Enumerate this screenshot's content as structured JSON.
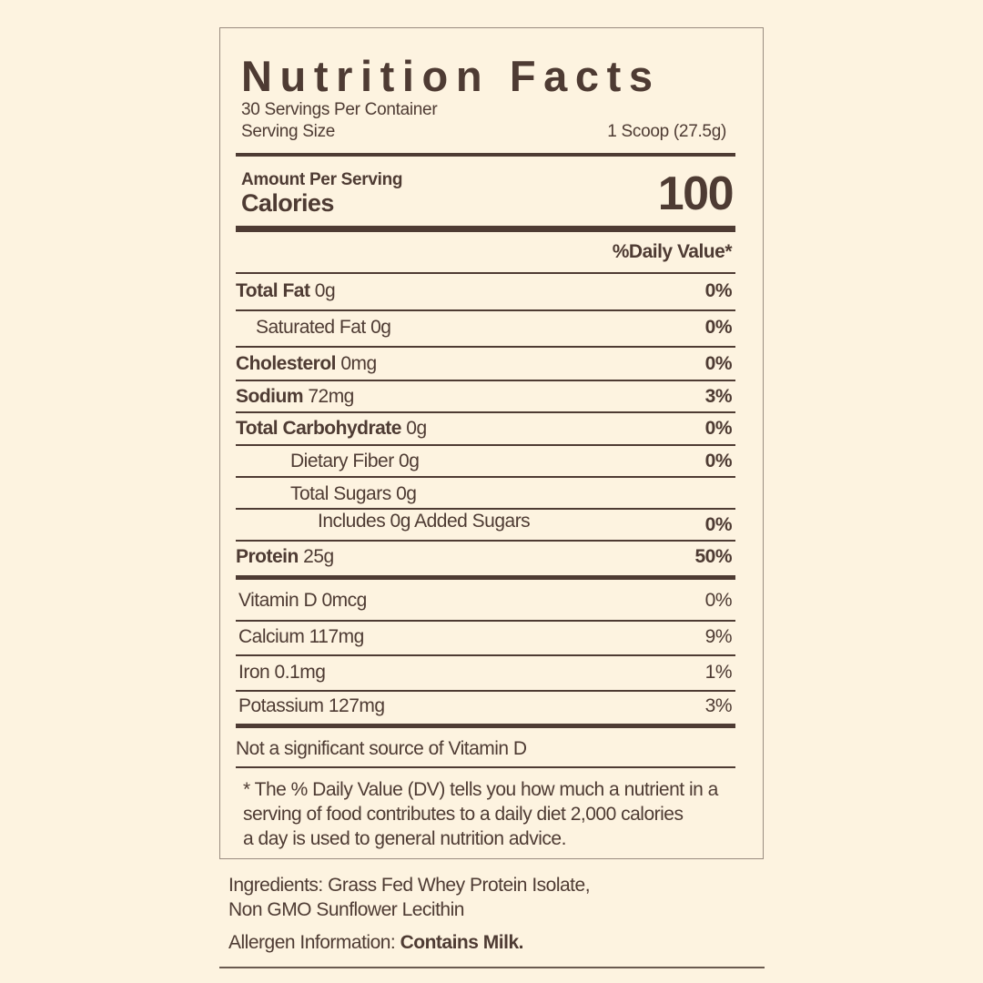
{
  "label": {
    "title": "Nutrition Facts",
    "servings_per_container": "30 Servings Per Container",
    "serving_size_label": "Serving Size",
    "serving_size_value": "1 Scoop (27.5g)",
    "amount_per_serving": "Amount Per Serving",
    "calories_label": "Calories",
    "calories_value": "100",
    "daily_value_header": "%Daily Value*",
    "nutrients": [
      {
        "name": "Total Fat",
        "amount": " 0g",
        "dv": "0%",
        "bold": true,
        "indent": 0
      },
      {
        "name": "Saturated Fat 0g",
        "amount": "",
        "dv": "0%",
        "bold": false,
        "indent": 1
      },
      {
        "name": "Cholesterol",
        "amount": " 0mg",
        "dv": "0%",
        "bold": true,
        "indent": 0
      },
      {
        "name": "Sodium",
        "amount": " 72mg",
        "dv": "3%",
        "bold": true,
        "indent": 0
      },
      {
        "name": "Total Carbohydrate",
        "amount": " 0g",
        "dv": "0%",
        "bold": true,
        "indent": 0
      },
      {
        "name": "Dietary Fiber 0g",
        "amount": "",
        "dv": "0%",
        "bold": false,
        "indent": 2
      },
      {
        "name": "Total Sugars 0g",
        "amount": "",
        "dv": "",
        "bold": false,
        "indent": 2
      },
      {
        "name": "Includes 0g Added Sugars",
        "amount": "",
        "dv": "0%",
        "bold": false,
        "indent": 3
      },
      {
        "name": "Protein",
        "amount": " 25g",
        "dv": "50%",
        "bold": true,
        "indent": 0
      }
    ],
    "vitamins": [
      {
        "name": "Vitamin D 0mcg",
        "dv": "0%"
      },
      {
        "name": "Calcium 117mg",
        "dv": "9%"
      },
      {
        "name": "Iron 0.1mg",
        "dv": "1%"
      },
      {
        "name": "Potassium 127mg",
        "dv": "3%"
      }
    ],
    "not_significant": "Not a significant source of Vitamin D",
    "footnote": [
      "* The % Daily Value (DV) tells you how much a nutrient in a",
      "serving of food contributes to a daily diet 2,000 calories",
      "a day is used to general nutrition advice."
    ]
  },
  "ingredients": {
    "line1": "Ingredients: Grass Fed Whey Protein Isolate,",
    "line2": "Non GMO Sunflower Lecithin"
  },
  "allergen": {
    "label": "Allergen Information: ",
    "value": "Contains Milk."
  },
  "colors": {
    "background": "#fdf3e0",
    "text": "#4e3b33"
  }
}
